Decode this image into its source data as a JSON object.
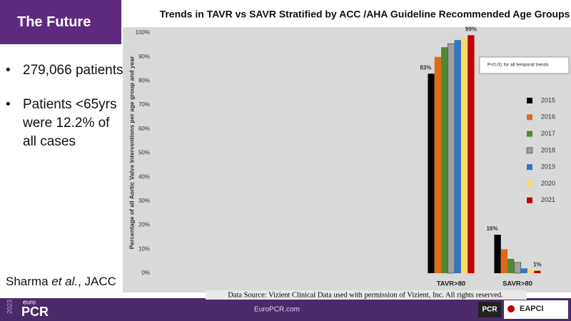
{
  "header": {
    "title": "The Future"
  },
  "bullets": [
    "279,066 patients",
    "Patients <65yrs were 12.2% of all cases"
  ],
  "citation": {
    "author": "Sharma ",
    "etal": "et al.",
    "journal": ", JACC"
  },
  "source": "Data Source: Vizient Clinical Data used with permission of Vizient, Inc. All rights reserved.",
  "footer": {
    "year": "2023",
    "brand_small": "euro",
    "brand": "PCR",
    "url": "EuroPCR.com",
    "logo1": "PCR",
    "logo2": "EAPCI"
  },
  "chart_data": {
    "type": "bar",
    "title": "Trends in TAVR vs SAVR Stratified by ACC /AHA Guideline Recommended Age Groups",
    "y_label": "Percentage of all Aortic Valve Interventions per age group and year",
    "annotation": "P<0.01 for all temporal trends",
    "categories": [
      "TAVR>80",
      "SAVR>80"
    ],
    "series": [
      {
        "name": "2015",
        "color": "#000000",
        "values": [
          83,
          16
        ],
        "value_labels": [
          "83%",
          "16%"
        ]
      },
      {
        "name": "2016",
        "color": "#e06a17",
        "values": [
          90,
          10
        ]
      },
      {
        "name": "2017",
        "color": "#4e8a35",
        "values": [
          94,
          6
        ]
      },
      {
        "name": "2018",
        "color": "#a0a0a0",
        "values": [
          95.5,
          4.5
        ]
      },
      {
        "name": "2019",
        "color": "#2f78c4",
        "values": [
          97,
          2
        ]
      },
      {
        "name": "2020",
        "color": "#ffd966",
        "values": [
          98,
          1.5
        ]
      },
      {
        "name": "2021",
        "color": "#c00000",
        "values": [
          99,
          1
        ],
        "value_labels": [
          "99%",
          "1%"
        ]
      }
    ],
    "ylim": [
      0,
      100
    ],
    "yticks": [
      {
        "value": 0,
        "label": "0%"
      },
      {
        "value": 10,
        "label": "10%"
      },
      {
        "value": 20,
        "label": "20%"
      },
      {
        "value": 30,
        "label": "30%"
      },
      {
        "value": 40,
        "label": "40%"
      },
      {
        "value": 50,
        "label": "50%"
      },
      {
        "value": 60,
        "label": "60%"
      },
      {
        "value": 70,
        "label": "70%"
      },
      {
        "value": 80,
        "label": "80%"
      },
      {
        "value": 90,
        "label": "90%"
      },
      {
        "value": 100,
        "label": "100%"
      }
    ],
    "grid": false
  }
}
